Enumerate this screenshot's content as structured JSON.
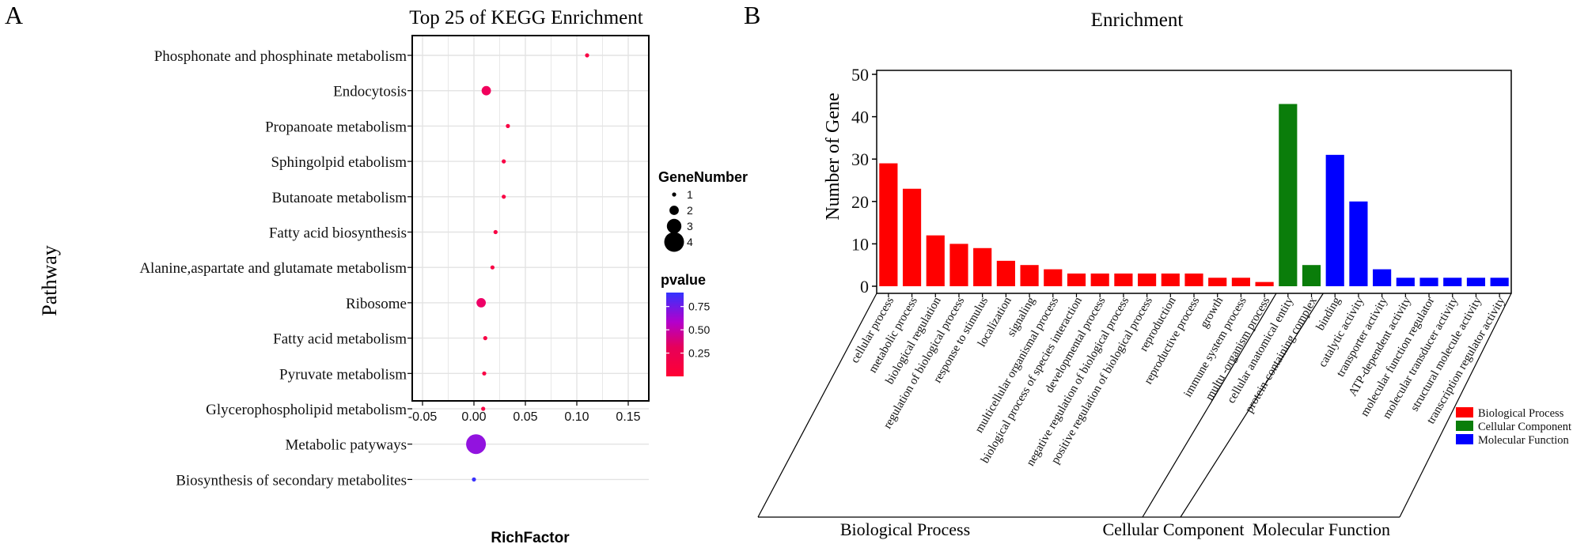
{
  "panel_labels": {
    "a": "A",
    "b": "B"
  },
  "colors": {
    "bp": "#ff0000",
    "cc": "#0a7d0a",
    "mf": "#0000ff",
    "grid": "#e3e3e3",
    "p_high": "#3333ff",
    "p_mid": "#cc00cc",
    "p_low": "#ff0033"
  },
  "chart_data": [
    {
      "type": "scatter",
      "title": "Top 25 of KEGG Enrichment",
      "xlabel": "RichFactor",
      "ylabel": "Pathway",
      "xlim": [
        -0.06,
        0.17
      ],
      "x_ticks": [
        "-0.05",
        "0.00",
        "0.05",
        "0.10",
        "0.15"
      ],
      "x_tick_values": [
        -0.05,
        0.0,
        0.05,
        0.1,
        0.15
      ],
      "grid": true,
      "pathways": [
        "Phosphonate and phosphinate metabolism",
        "Endocytosis",
        "Propanoate metabolism",
        "Sphingolpid etabolism",
        "Butanoate metabolism",
        "Fatty acid biosynthesis",
        "Alanine,aspartate and glutamate metabolism",
        "Ribosome",
        "Fatty acid metabolism",
        "Pyruvate metabolism",
        "Glycerophospholipid metabolism",
        "Metabolic patyways",
        "Biosynthesis of secondary metabolites"
      ],
      "rich_factor": [
        0.11,
        0.012,
        0.033,
        0.029,
        0.029,
        0.021,
        0.018,
        0.007,
        0.011,
        0.01,
        0.009,
        0.002,
        0.0
      ],
      "gene_number": [
        1,
        2,
        1,
        1,
        1,
        1,
        1,
        2,
        1,
        1,
        1,
        4,
        1
      ],
      "pvalue": [
        0.05,
        0.12,
        0.05,
        0.05,
        0.05,
        0.05,
        0.05,
        0.15,
        0.05,
        0.05,
        0.05,
        0.62,
        0.88
      ],
      "legend_size": {
        "title": "GeneNumber",
        "values": [
          1,
          2,
          3,
          4
        ],
        "labels": [
          "1",
          "2",
          "3",
          "4"
        ]
      },
      "legend_color": {
        "title": "pvalue",
        "range": [
          0.0,
          0.9
        ],
        "ticks": [
          0.25,
          0.5,
          0.75
        ],
        "tick_labels": [
          "0.25",
          "0.50",
          "0.75"
        ]
      },
      "legend_placement": "right"
    },
    {
      "type": "bar",
      "title": "Enrichment",
      "ylabel": "Number of Gene",
      "ylim": [
        0,
        50
      ],
      "y_ticks": [
        "0",
        "10",
        "20",
        "30",
        "40",
        "50"
      ],
      "y_tick_values": [
        0,
        10,
        20,
        30,
        40,
        50
      ],
      "categories": [
        "cellular process",
        "metabolic process",
        "biological  regulation",
        "regulation of biological process",
        "response to stimulus",
        "localization",
        "signaling",
        "multicellular organismal process",
        "biological process of species interaction",
        "developmental process",
        "negative regulation of biological process",
        "positive regulation of biological process",
        "reproduction",
        "reproductive process",
        "growth",
        "immune system process",
        "multu -organism process",
        "cellular anatomical entity",
        "protein-containing complex",
        "binding",
        "catalytic activity",
        "transporter activity",
        "ATP-dependent activity",
        "molecular function regulator",
        "molecular transducer activity",
        "structural molecule activity",
        "transcription regulator activity"
      ],
      "values": [
        29,
        23,
        12,
        10,
        9,
        6,
        5,
        4,
        3,
        3,
        3,
        3,
        3,
        3,
        2,
        2,
        1,
        43,
        5,
        31,
        20,
        4,
        2,
        2,
        2,
        2,
        2
      ],
      "groups": [
        "bp",
        "bp",
        "bp",
        "bp",
        "bp",
        "bp",
        "bp",
        "bp",
        "bp",
        "bp",
        "bp",
        "bp",
        "bp",
        "bp",
        "bp",
        "bp",
        "bp",
        "cc",
        "cc",
        "mf",
        "mf",
        "mf",
        "mf",
        "mf",
        "mf",
        "mf",
        "mf"
      ],
      "group_labels": [
        "Biological Process",
        "Cellular Component",
        "Molecular Function"
      ],
      "legend": [
        "Biological Process",
        "Cellular Component",
        "Molecular Function"
      ],
      "legend_placement": "bottom-right"
    }
  ]
}
